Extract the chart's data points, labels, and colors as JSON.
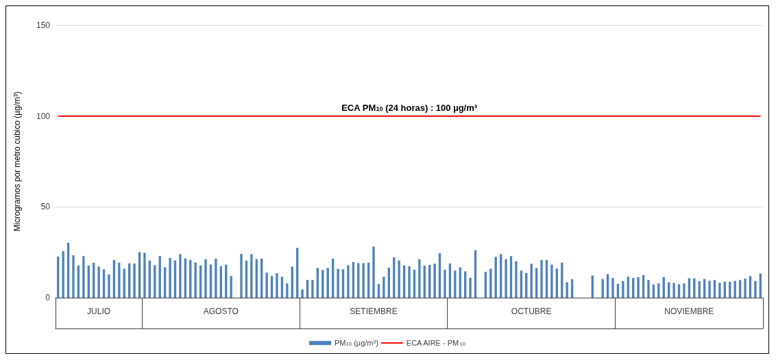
{
  "chart_data": {
    "type": "bar",
    "ylabel": "Microgramos por metro cúbico (µg/m³)",
    "categories": [
      null,
      null,
      null,
      null,
      null,
      null,
      null,
      null,
      "JULIO",
      null,
      null,
      null,
      null,
      null,
      null,
      null,
      null,
      null,
      null,
      null,
      null,
      null,
      null,
      null,
      null,
      null,
      null,
      null,
      null,
      null,
      null,
      null,
      "AGOSTO",
      null,
      null,
      null,
      null,
      null,
      null,
      null,
      null,
      null,
      null,
      null,
      null,
      null,
      null,
      null,
      null,
      null,
      null,
      null,
      null,
      null,
      null,
      null,
      null,
      null,
      null,
      null,
      null,
      null,
      "SETIEMBRE",
      null,
      null,
      null,
      null,
      null,
      null,
      null,
      null,
      null,
      null,
      null,
      null,
      null,
      null,
      null,
      null,
      null,
      null,
      null,
      null,
      null,
      null,
      null,
      null,
      null,
      null,
      null,
      null,
      null,
      null,
      "OCTUBRE",
      null,
      null,
      null,
      null,
      null,
      null,
      null,
      null,
      null,
      null,
      null,
      null,
      null,
      null,
      null,
      null,
      null,
      null,
      null,
      null,
      null,
      null,
      null,
      null,
      null,
      null,
      null,
      null,
      null,
      null,
      "NOVIEMBRE",
      null,
      null,
      null,
      null,
      null,
      null,
      null,
      null,
      null,
      null,
      null,
      null,
      null,
      null
    ],
    "series": [
      {
        "name": "PM$_{10}$ (µg/m³)",
        "color": "#4f81bd",
        "values": [
          22.7,
          25.6,
          30.2,
          23.3,
          17.8,
          22.9,
          17.7,
          19.2,
          17.2,
          15.6,
          12.8,
          20.7,
          19.3,
          16,
          18.9,
          18.8,
          25.1,
          24.7,
          20.5,
          17.9,
          22.9,
          16.8,
          21.9,
          20.5,
          24,
          21.6,
          20.7,
          19.4,
          17.8,
          21.1,
          18.3,
          21.5,
          17.3,
          18.2,
          11.9,
          null,
          24.1,
          20.4,
          24,
          21.2,
          21.5,
          13.8,
          11.9,
          13.5,
          11.5,
          7.8,
          17.1,
          27.4,
          4.5,
          9.8,
          9.8,
          16.4,
          15.3,
          16.4,
          21.5,
          15.9,
          15.6,
          17.9,
          19.6,
          19,
          19,
          19.3,
          28.1,
          7.5,
          11.5,
          16.5,
          22.2,
          20.5,
          17.7,
          17.3,
          15.4,
          21.2,
          17.6,
          18.1,
          18.7,
          24.4,
          15.4,
          18.8,
          14.9,
          16.7,
          14.5,
          10.9,
          26.2,
          null,
          14.2,
          15.9,
          22.5,
          24,
          21.2,
          22.9,
          20.1,
          14.9,
          13.6,
          18.7,
          16.4,
          20.8,
          20.7,
          18.2,
          16,
          19.3,
          8.5,
          10.2,
          null,
          null,
          null,
          12.2,
          null,
          10.3,
          13,
          10.9,
          7.6,
          9.1,
          11.6,
          10.9,
          11.3,
          12.4,
          9.8,
          7.3,
          7.9,
          11.3,
          8.5,
          8.1,
          7.4,
          7.8,
          10.7,
          10.7,
          9.1,
          10.3,
          9.3,
          9.7,
          8.2,
          8.8,
          8.8,
          9.3,
          9.7,
          10.5,
          11.9,
          9.2,
          13.3
        ]
      },
      {
        "name": "ECA AIRE - PM$_{10}$",
        "type": "line",
        "color": "#ff0000",
        "values": [
          100,
          100,
          100,
          100,
          100,
          100,
          100,
          100,
          100,
          100,
          100,
          100,
          100,
          100,
          100,
          100,
          100,
          100,
          100,
          100,
          100,
          100,
          100,
          100,
          100,
          100,
          100,
          100,
          100,
          100,
          100,
          100,
          100,
          100,
          100,
          100,
          100,
          100,
          100,
          100,
          100,
          100,
          100,
          100,
          100,
          100,
          100,
          100,
          100,
          100,
          100,
          100,
          100,
          100,
          100,
          100,
          100,
          100,
          100,
          100,
          100,
          100,
          100,
          100,
          100,
          100,
          100,
          100,
          100,
          100,
          100,
          100,
          100,
          100,
          100,
          100,
          100,
          100,
          100,
          100,
          100,
          100,
          100,
          100,
          100,
          100,
          100,
          100,
          100,
          100,
          100,
          100,
          100,
          100,
          100,
          100,
          100,
          100,
          100,
          100,
          100,
          100,
          100,
          100,
          100,
          100,
          100,
          100,
          100,
          100,
          100,
          100,
          100,
          100,
          100,
          100,
          100,
          100,
          100,
          100,
          100,
          100,
          100,
          100,
          100,
          100,
          100,
          100,
          100,
          100,
          100,
          100,
          100,
          100,
          100,
          100,
          100,
          100,
          100
        ]
      }
    ],
    "annotations": [
      {
        "text": "ECA PM$_{10}$ (24 horas) : 100 µg/m³",
        "y": 100
      }
    ],
    "ylim": [
      0,
      150
    ],
    "yticks": [
      0,
      50,
      100,
      150
    ],
    "grid": "y",
    "legend": "bottom"
  }
}
